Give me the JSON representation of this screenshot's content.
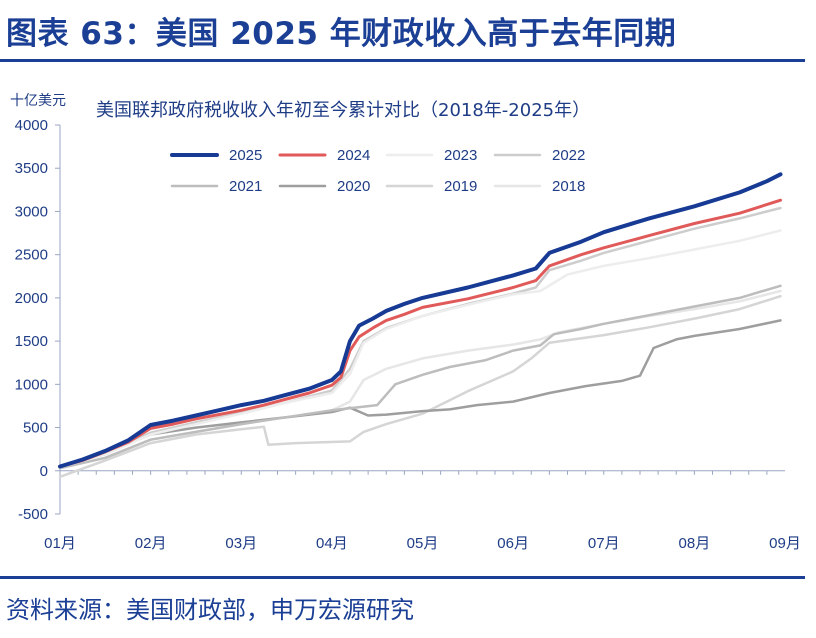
{
  "figure_title": "图表 63：美国 2025 年财政收入高于去年同期",
  "source": "资料来源：美国财政部，申万宏源研究",
  "chart_data": {
    "type": "line",
    "title": "美国联邦政府税收收入年初至今累计对比（2018年-2025年）",
    "ylabel": "十亿美元",
    "xlabel": "",
    "ylim": [
      -500,
      4000
    ],
    "yticks": [
      -500,
      0,
      500,
      1000,
      1500,
      2000,
      2500,
      3000,
      3500,
      4000
    ],
    "xlim": [
      0,
      8
    ],
    "categories": [
      "01月",
      "02月",
      "03月",
      "04月",
      "05月",
      "06月",
      "07月",
      "08月",
      "09月"
    ],
    "legend_position": "top",
    "grid": false,
    "series": [
      {
        "name": "2025",
        "color": "#173a94",
        "width": 4,
        "x": [
          0,
          0.25,
          0.5,
          0.75,
          1,
          1.25,
          1.5,
          1.75,
          2,
          2.25,
          2.5,
          2.75,
          3,
          3.1,
          3.2,
          3.3,
          3.45,
          3.6,
          3.8,
          4,
          4.5,
          5,
          5.25,
          5.4,
          5.75,
          6,
          6.5,
          7,
          7.5,
          7.8,
          7.95
        ],
        "y": [
          50,
          130,
          230,
          350,
          530,
          580,
          640,
          700,
          760,
          810,
          880,
          950,
          1050,
          1150,
          1500,
          1680,
          1760,
          1850,
          1930,
          2000,
          2120,
          2260,
          2340,
          2520,
          2650,
          2760,
          2920,
          3060,
          3220,
          3350,
          3430
        ]
      },
      {
        "name": "2024",
        "color": "#e05a5a",
        "width": 3,
        "x": [
          0,
          0.25,
          0.5,
          0.75,
          1,
          1.25,
          1.5,
          1.75,
          2,
          2.25,
          2.5,
          2.75,
          3,
          3.1,
          3.2,
          3.3,
          3.45,
          3.6,
          3.8,
          4,
          4.5,
          5,
          5.25,
          5.4,
          5.75,
          6,
          6.5,
          7,
          7.5,
          7.95
        ],
        "y": [
          50,
          120,
          220,
          330,
          490,
          540,
          600,
          650,
          700,
          760,
          830,
          900,
          990,
          1080,
          1390,
          1550,
          1650,
          1740,
          1810,
          1890,
          1990,
          2120,
          2200,
          2370,
          2500,
          2580,
          2720,
          2860,
          2980,
          3130
        ]
      },
      {
        "name": "2023",
        "color": "#ededed",
        "width": 2.5,
        "x": [
          0,
          0.5,
          1,
          1.5,
          2,
          2.5,
          3,
          3.2,
          3.35,
          3.6,
          4,
          4.5,
          5,
          5.3,
          5.6,
          6,
          6.5,
          7,
          7.5,
          7.95
        ],
        "y": [
          40,
          190,
          420,
          540,
          660,
          790,
          900,
          1120,
          1480,
          1640,
          1790,
          1920,
          2040,
          2080,
          2270,
          2370,
          2460,
          2560,
          2660,
          2780
        ]
      },
      {
        "name": "2022",
        "color": "#cdcdcd",
        "width": 2.5,
        "x": [
          0,
          0.5,
          1,
          1.5,
          2,
          2.5,
          3,
          3.2,
          3.35,
          3.6,
          4,
          4.5,
          5,
          5.25,
          5.4,
          5.75,
          6,
          6.5,
          7,
          7.5,
          7.95
        ],
        "y": [
          40,
          200,
          440,
          560,
          670,
          790,
          930,
          1180,
          1500,
          1650,
          1790,
          1930,
          2050,
          2120,
          2320,
          2430,
          2520,
          2660,
          2800,
          2920,
          3040
        ]
      },
      {
        "name": "2021",
        "color": "#bdbdbd",
        "width": 2.5,
        "x": [
          0,
          0.5,
          1,
          1.5,
          2,
          2.5,
          3,
          3.5,
          3.7,
          4,
          4.3,
          4.7,
          5,
          5.3,
          5.45,
          5.75,
          6,
          6.5,
          7,
          7.5,
          7.95
        ],
        "y": [
          30,
          150,
          360,
          450,
          540,
          620,
          700,
          760,
          1000,
          1110,
          1200,
          1280,
          1390,
          1450,
          1580,
          1640,
          1700,
          1800,
          1900,
          2000,
          2140
        ]
      },
      {
        "name": "2020",
        "color": "#9e9e9e",
        "width": 2.5,
        "x": [
          0,
          0.5,
          1,
          1.5,
          2,
          2.5,
          3,
          3.2,
          3.4,
          3.6,
          3.8,
          4,
          4.3,
          4.6,
          5,
          5.4,
          5.8,
          6.2,
          6.4,
          6.55,
          6.8,
          7,
          7.5,
          7.95
        ],
        "y": [
          40,
          200,
          420,
          500,
          560,
          620,
          680,
          730,
          640,
          650,
          670,
          690,
          710,
          760,
          800,
          900,
          980,
          1040,
          1100,
          1420,
          1520,
          1560,
          1640,
          1740
        ]
      },
      {
        "name": "2019",
        "color": "#d5d5d5",
        "width": 2.5,
        "x": [
          0,
          0.5,
          1,
          1.5,
          2,
          2.25,
          2.3,
          2.6,
          2.9,
          3.2,
          3.35,
          3.6,
          4,
          4.5,
          5,
          5.2,
          5.4,
          6,
          6.5,
          7,
          7.5,
          7.95
        ],
        "y": [
          -70,
          120,
          320,
          420,
          480,
          510,
          300,
          320,
          330,
          340,
          450,
          540,
          660,
          920,
          1150,
          1300,
          1480,
          1570,
          1660,
          1760,
          1870,
          2020
        ]
      },
      {
        "name": "2018",
        "color": "#e6e6e6",
        "width": 2.5,
        "x": [
          0,
          0.5,
          1,
          1.5,
          2,
          2.5,
          3,
          3.2,
          3.35,
          3.6,
          4,
          4.5,
          5,
          5.3,
          5.5,
          5.75,
          6,
          6.5,
          7,
          7.5,
          7.95
        ],
        "y": [
          30,
          150,
          360,
          450,
          540,
          620,
          700,
          800,
          1050,
          1180,
          1300,
          1390,
          1460,
          1520,
          1600,
          1650,
          1700,
          1790,
          1870,
          1960,
          2080
        ]
      }
    ]
  }
}
